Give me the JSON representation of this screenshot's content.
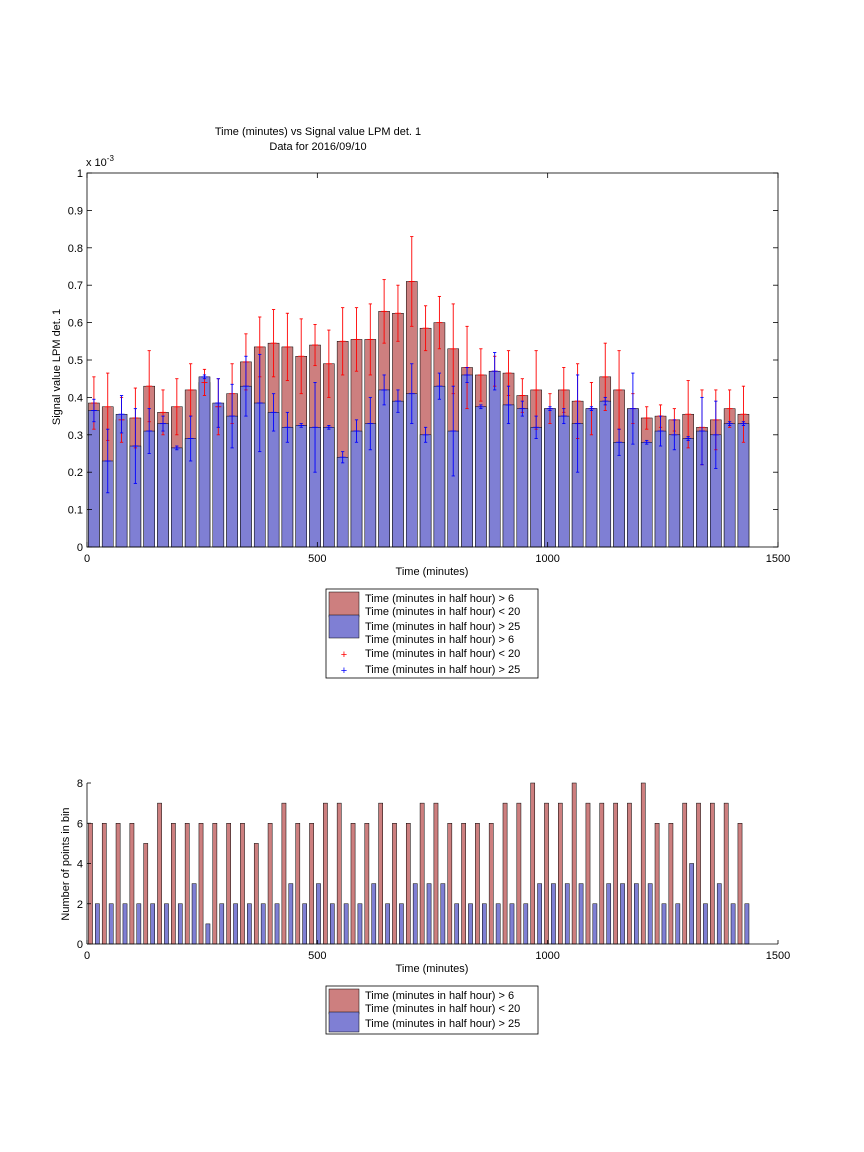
{
  "chart_data": [
    {
      "type": "bar",
      "title": "Time (minutes) vs Signal value LPM det. 1",
      "subtitle": "Data for 2016/09/10",
      "xlabel": "Time (minutes)",
      "ylabel": "Signal value LPM det. 1",
      "y_exponent_label": "x 10",
      "y_exponent_power": "-3",
      "xlim": [
        0,
        1500
      ],
      "ylim": [
        0,
        1
      ],
      "xticks": [
        0,
        500,
        1000,
        1500
      ],
      "yticks": [
        0,
        0.1,
        0.2,
        0.3,
        0.4,
        0.5,
        0.6,
        0.7,
        0.8,
        0.9,
        1
      ],
      "xtick_labels": [
        "0",
        "500",
        "1000",
        "1500"
      ],
      "ytick_labels": [
        "0",
        "0.1",
        "0.2",
        "0.3",
        "0.4",
        "0.5",
        "0.6",
        "0.7",
        "0.8",
        "0.9",
        "1"
      ],
      "grid": false,
      "legend_position": "below",
      "x": [
        15,
        45,
        75,
        105,
        135,
        165,
        195,
        225,
        255,
        285,
        315,
        345,
        375,
        405,
        435,
        465,
        495,
        525,
        555,
        585,
        615,
        645,
        675,
        705,
        735,
        765,
        795,
        825,
        855,
        885,
        915,
        945,
        975,
        1005,
        1035,
        1065,
        1095,
        1125,
        1155,
        1185,
        1215,
        1245,
        1275,
        1305,
        1335,
        1365,
        1395,
        1425
      ],
      "series": [
        {
          "name": "Time (minutes in half hour) > 6\nTime (minutes in half hour) < 20",
          "color": "#cd7f7f",
          "values": [
            0.385,
            0.375,
            0.34,
            0.345,
            0.43,
            0.36,
            0.375,
            0.42,
            0.44,
            0.375,
            0.41,
            0.495,
            0.535,
            0.545,
            0.535,
            0.51,
            0.54,
            0.49,
            0.55,
            0.555,
            0.555,
            0.63,
            0.625,
            0.71,
            0.585,
            0.6,
            0.53,
            0.48,
            0.46,
            0.47,
            0.465,
            0.405,
            0.42,
            0.37,
            0.42,
            0.39,
            0.37,
            0.455,
            0.42,
            0.37,
            0.345,
            0.35,
            0.34,
            0.355,
            0.32,
            0.34,
            0.37,
            0.355
          ],
          "errors": [
            0.07,
            0.09,
            0.06,
            0.08,
            0.095,
            0.06,
            0.075,
            0.07,
            0.035,
            0.075,
            0.08,
            0.075,
            0.08,
            0.09,
            0.09,
            0.1,
            0.055,
            0.09,
            0.09,
            0.085,
            0.095,
            0.085,
            0.075,
            0.12,
            0.06,
            0.07,
            0.12,
            0.11,
            0.07,
            0.04,
            0.06,
            0.045,
            0.105,
            0.04,
            0.06,
            0.1,
            0.07,
            0.09,
            0.105,
            0.04,
            0.03,
            0.03,
            0.03,
            0.09,
            0.1,
            0.08,
            0.05,
            0.075
          ]
        },
        {
          "name": "Time (minutes in half hour) > 25",
          "color": "#7f7fd4",
          "values": [
            0.365,
            0.23,
            0.355,
            0.27,
            0.31,
            0.33,
            0.265,
            0.29,
            0.455,
            0.385,
            0.35,
            0.43,
            0.385,
            0.36,
            0.32,
            0.325,
            0.32,
            0.32,
            0.24,
            0.31,
            0.33,
            0.42,
            0.39,
            0.41,
            0.3,
            0.43,
            0.31,
            0.46,
            0.375,
            0.47,
            0.38,
            0.37,
            0.32,
            0.37,
            0.35,
            0.33,
            0.37,
            0.39,
            0.28,
            0.37,
            0.28,
            0.31,
            0.3,
            0.29,
            0.31,
            0.3,
            0.33,
            0.33
          ],
          "errors": [
            0.03,
            0.085,
            0.05,
            0.1,
            0.06,
            0.02,
            0.005,
            0.06,
            0.005,
            0.065,
            0.085,
            0.08,
            0.13,
            0.05,
            0.04,
            0.005,
            0.12,
            0.005,
            0.015,
            0.03,
            0.07,
            0.04,
            0.03,
            0.08,
            0.02,
            0.035,
            0.12,
            0.02,
            0.005,
            0.05,
            0.05,
            0.02,
            0.03,
            0.005,
            0.02,
            0.13,
            0.005,
            0.01,
            0.035,
            0.095,
            0.005,
            0.04,
            0.04,
            0.005,
            0.09,
            0.09,
            0.005,
            0.005
          ]
        }
      ],
      "legend_entries": [
        {
          "swatch": "patch-red",
          "lines": [
            "Time (minutes in half hour) > 6",
            "Time (minutes in half hour) < 20"
          ]
        },
        {
          "swatch": "patch-blue",
          "lines": [
            "Time (minutes in half hour) > 25"
          ]
        },
        {
          "swatch": "plus-red",
          "lines": [
            "Time (minutes in half hour) > 6",
            "Time (minutes in half hour) < 20"
          ]
        },
        {
          "swatch": "plus-blue",
          "lines": [
            "Time (minutes in half hour) > 25"
          ]
        }
      ]
    },
    {
      "type": "bar",
      "xlabel": "Time (minutes)",
      "ylabel": "Number of points in bin",
      "xlim": [
        0,
        1500
      ],
      "ylim": [
        0,
        8
      ],
      "xticks": [
        0,
        500,
        1000,
        1500
      ],
      "yticks": [
        0,
        2,
        4,
        6,
        8
      ],
      "xtick_labels": [
        "0",
        "500",
        "1000",
        "1500"
      ],
      "ytick_labels": [
        "0",
        "2",
        "4",
        "6",
        "8"
      ],
      "grid": false,
      "legend_position": "below",
      "x": [
        15,
        45,
        75,
        105,
        135,
        165,
        195,
        225,
        255,
        285,
        315,
        345,
        375,
        405,
        435,
        465,
        495,
        525,
        555,
        585,
        615,
        645,
        675,
        705,
        735,
        765,
        795,
        825,
        855,
        885,
        915,
        945,
        975,
        1005,
        1035,
        1065,
        1095,
        1125,
        1155,
        1185,
        1215,
        1245,
        1275,
        1305,
        1335,
        1365,
        1395,
        1425
      ],
      "series": [
        {
          "name": "Time (minutes in half hour) > 6\nTime (minutes in half hour) < 20",
          "color": "#cd7f7f",
          "values": [
            6,
            6,
            6,
            6,
            5,
            7,
            6,
            6,
            6,
            6,
            6,
            6,
            5,
            6,
            7,
            6,
            6,
            7,
            7,
            6,
            6,
            7,
            6,
            6,
            7,
            7,
            6,
            6,
            6,
            6,
            7,
            7,
            8,
            7,
            7,
            8,
            7,
            7,
            7,
            7,
            8,
            6,
            6,
            7,
            7,
            7,
            7,
            6
          ]
        },
        {
          "name": "Time (minutes in half hour) > 25",
          "color": "#7f7fd4",
          "values": [
            2,
            2,
            2,
            2,
            2,
            2,
            2,
            3,
            1,
            2,
            2,
            2,
            2,
            2,
            3,
            2,
            3,
            2,
            2,
            2,
            3,
            2,
            2,
            3,
            3,
            3,
            2,
            2,
            2,
            2,
            2,
            2,
            3,
            3,
            3,
            3,
            2,
            3,
            3,
            3,
            3,
            2,
            2,
            4,
            2,
            3,
            2,
            2
          ]
        }
      ],
      "legend_entries": [
        {
          "swatch": "patch-red",
          "lines": [
            "Time (minutes in half hour) > 6",
            "Time (minutes in half hour) < 20"
          ]
        },
        {
          "swatch": "patch-blue",
          "lines": [
            "Time (minutes in half hour) > 25"
          ]
        }
      ]
    }
  ]
}
